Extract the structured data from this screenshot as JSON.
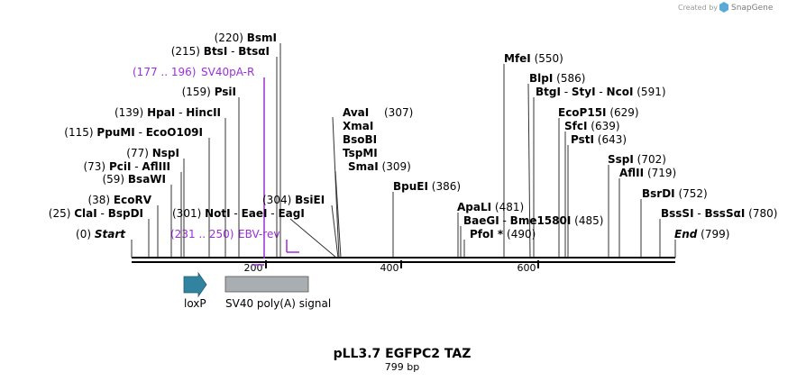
{
  "credit": {
    "created_by": "Created by",
    "brand": "SnapGene"
  },
  "map": {
    "title": "pLL3.7 EGFPC2 TAZ",
    "subtitle": "799 bp",
    "length": 799,
    "ticks": [
      "200",
      "400",
      "600"
    ],
    "features": [
      {
        "name": "loxP"
      },
      {
        "name": "SV40 poly(A) signal"
      }
    ],
    "primers": [
      {
        "pos": "(177 .. 196)",
        "name": "SV40pA-R"
      },
      {
        "pos": "(231 .. 250)",
        "name": "EBV-rev"
      }
    ],
    "start": {
      "pos": "(0)",
      "label": "Start"
    },
    "end": {
      "label": "End",
      "pos": "(799)"
    },
    "left_sites": [
      {
        "pos": "(220)",
        "names": [
          "BsmI"
        ]
      },
      {
        "pos": "(215)",
        "names": [
          "BtsI",
          "BtsαI"
        ]
      },
      {
        "pos": "(159)",
        "names": [
          "PsiI"
        ]
      },
      {
        "pos": "(139)",
        "names": [
          "HpaI",
          "HincII"
        ]
      },
      {
        "pos": "(115)",
        "names": [
          "PpuMI",
          "EcoO109I"
        ]
      },
      {
        "pos": "(77)",
        "names": [
          "NspI"
        ]
      },
      {
        "pos": "(73)",
        "names": [
          "PciI",
          "AflIII"
        ]
      },
      {
        "pos": "(59)",
        "names": [
          "BsaWI"
        ]
      },
      {
        "pos": "(38)",
        "names": [
          "EcoRV"
        ]
      },
      {
        "pos": "(25)",
        "names": [
          "ClaI",
          "BspDI"
        ]
      }
    ],
    "mid_sites": [
      {
        "pos": "(304)",
        "names": [
          "BsiEI"
        ]
      },
      {
        "pos": "(301)",
        "names": [
          "NotI",
          "EaeI",
          "EagI"
        ]
      }
    ],
    "stack_307": {
      "pos": "(307)",
      "names": [
        "AvaI",
        "XmaI",
        "BsoBI",
        "TspMI"
      ]
    },
    "smal": {
      "pos": "(309)",
      "names": [
        "SmaI"
      ]
    },
    "bpuei": {
      "pos": "(386)",
      "names": [
        "BpuEI"
      ]
    },
    "right_sites": [
      {
        "pos": "(550)",
        "names": [
          "MfeI"
        ]
      },
      {
        "pos": "(586)",
        "names": [
          "BlpI"
        ]
      },
      {
        "pos": "(591)",
        "names": [
          "BtgI",
          "StyI",
          "NcoI"
        ]
      },
      {
        "pos": "(629)",
        "names": [
          "EcoP15I"
        ]
      },
      {
        "pos": "(639)",
        "names": [
          "SfcI"
        ]
      },
      {
        "pos": "(643)",
        "names": [
          "PstI"
        ]
      },
      {
        "pos": "(702)",
        "names": [
          "SspI"
        ]
      },
      {
        "pos": "(719)",
        "names": [
          "AflII"
        ]
      },
      {
        "pos": "(752)",
        "names": [
          "BsrDI"
        ]
      },
      {
        "pos": "(780)",
        "names": [
          "BssSI",
          "BssSαI"
        ]
      }
    ],
    "apali": {
      "pos": "(481)",
      "names": [
        "ApaLI"
      ]
    },
    "baegi": {
      "names": [
        "BaeGI",
        "Bme1580I"
      ],
      "pos": "(485)"
    },
    "pfoi": {
      "names": [
        "PfoI *"
      ],
      "pos": "(490)"
    }
  }
}
